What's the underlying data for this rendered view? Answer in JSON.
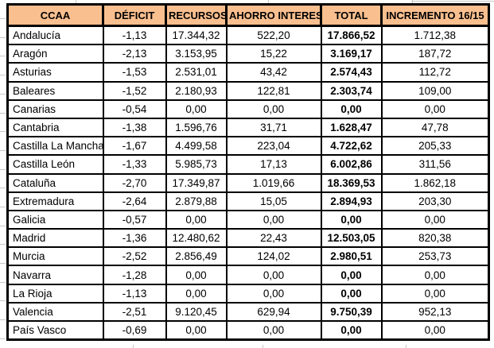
{
  "colors": {
    "header_bg": "#FABF8F",
    "border": "#000000",
    "text": "#000000",
    "gridline": "#c6c6c6"
  },
  "table": {
    "columns": [
      {
        "key": "ccaa",
        "label": "CCAA"
      },
      {
        "key": "deficit",
        "label": "DÉFICIT"
      },
      {
        "key": "recursos",
        "label": "RECURSOS"
      },
      {
        "key": "ahorro",
        "label": "AHORRO INTERESES"
      },
      {
        "key": "total",
        "label": "TOTAL"
      },
      {
        "key": "incremento",
        "label": "INCREMENTO 16/15"
      }
    ],
    "rows": [
      {
        "ccaa": "Andalucía",
        "deficit": "-1,13",
        "recursos": "17.344,32",
        "ahorro": "522,20",
        "total": "17.866,52",
        "incremento": "1.712,38"
      },
      {
        "ccaa": "Aragón",
        "deficit": "-2,13",
        "recursos": "3.153,95",
        "ahorro": "15,22",
        "total": "3.169,17",
        "incremento": "187,72"
      },
      {
        "ccaa": "Asturias",
        "deficit": "-1,53",
        "recursos": "2.531,01",
        "ahorro": "43,42",
        "total": "2.574,43",
        "incremento": "112,72"
      },
      {
        "ccaa": "Baleares",
        "deficit": "-1,52",
        "recursos": "2.180,93",
        "ahorro": "122,81",
        "total": "2.303,74",
        "incremento": "109,00"
      },
      {
        "ccaa": "Canarias",
        "deficit": "-0,54",
        "recursos": "0,00",
        "ahorro": "0,00",
        "total": "0,00",
        "incremento": "0,00"
      },
      {
        "ccaa": "Cantabria",
        "deficit": "-1,38",
        "recursos": "1.596,76",
        "ahorro": "31,71",
        "total": "1.628,47",
        "incremento": "47,78"
      },
      {
        "ccaa": "Castilla La Mancha",
        "deficit": "-1,67",
        "recursos": "4.499,58",
        "ahorro": "223,04",
        "total": "4.722,62",
        "incremento": "205,33"
      },
      {
        "ccaa": "Castilla León",
        "deficit": "-1,33",
        "recursos": "5.985,73",
        "ahorro": "17,13",
        "total": "6.002,86",
        "incremento": "311,56"
      },
      {
        "ccaa": "Cataluña",
        "deficit": "-2,70",
        "recursos": "17.349,87",
        "ahorro": "1.019,66",
        "total": "18.369,53",
        "incremento": "1.862,18"
      },
      {
        "ccaa": "Extremadura",
        "deficit": "-2,64",
        "recursos": "2.879,88",
        "ahorro": "15,05",
        "total": "2.894,93",
        "incremento": "203,30"
      },
      {
        "ccaa": "Galicia",
        "deficit": "-0,57",
        "recursos": "0,00",
        "ahorro": "0,00",
        "total": "0,00",
        "incremento": "0,00"
      },
      {
        "ccaa": "Madrid",
        "deficit": "-1,36",
        "recursos": "12.480,62",
        "ahorro": "22,43",
        "total": "12.503,05",
        "incremento": "820,38"
      },
      {
        "ccaa": "Murcia",
        "deficit": "-2,52",
        "recursos": "2.856,49",
        "ahorro": "124,02",
        "total": "2.980,51",
        "incremento": "253,73"
      },
      {
        "ccaa": "Navarra",
        "deficit": "-1,28",
        "recursos": "0,00",
        "ahorro": "0,00",
        "total": "0,00",
        "incremento": "0,00"
      },
      {
        "ccaa": "La Rioja",
        "deficit": "-1,13",
        "recursos": "0,00",
        "ahorro": "0,00",
        "total": "0,00",
        "incremento": "0,00"
      },
      {
        "ccaa": "Valencia",
        "deficit": "-2,51",
        "recursos": "9.120,45",
        "ahorro": "629,94",
        "total": "9.750,39",
        "incremento": "952,13"
      },
      {
        "ccaa": "País Vasco",
        "deficit": "-0,69",
        "recursos": "0,00",
        "ahorro": "0,00",
        "total": "0,00",
        "incremento": "0,00"
      }
    ]
  }
}
